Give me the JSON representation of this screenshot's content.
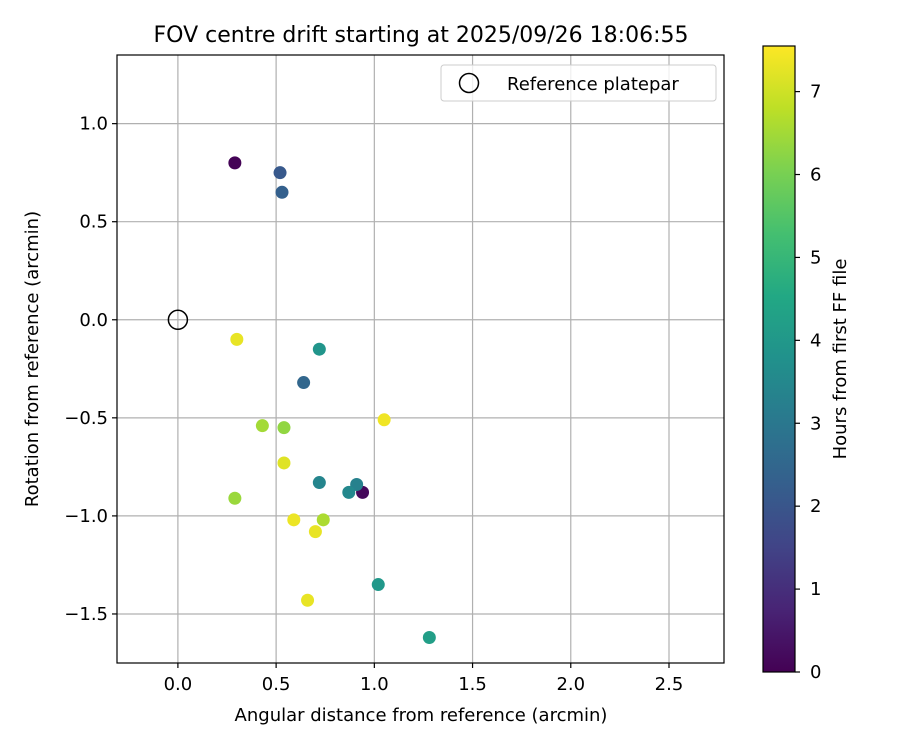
{
  "chart_data": {
    "type": "scatter",
    "title": "FOV centre drift starting at 2025/09/26 18:06:55",
    "xlabel": "Angular distance from reference (arcmin)",
    "ylabel": "Rotation from reference (arcmin)",
    "xlim": [
      -0.31,
      2.78
    ],
    "ylim": [
      -1.75,
      1.35
    ],
    "xticks": [
      0.0,
      0.5,
      1.0,
      1.5,
      2.0,
      2.5
    ],
    "xtick_labels": [
      "0.0",
      "0.5",
      "1.0",
      "1.5",
      "2.0",
      "2.5"
    ],
    "yticks": [
      1.0,
      0.5,
      0.0,
      -0.5,
      -1.0,
      -1.5
    ],
    "ytick_labels": [
      "1.0",
      "0.5",
      "0.0",
      "−0.5",
      "−1.0",
      "−1.5"
    ],
    "grid": true,
    "legend": {
      "position": "top-right",
      "entries": [
        "Reference platepar"
      ]
    },
    "reference_point": {
      "x": 0.0,
      "y": 0.0,
      "label": "Reference platepar"
    },
    "colorbar": {
      "label": "Hours from first FF file",
      "range": [
        0,
        7.55
      ],
      "ticks": [
        0,
        1,
        2,
        3,
        4,
        5,
        6,
        7
      ],
      "tick_labels": [
        "0",
        "1",
        "2",
        "3",
        "4",
        "5",
        "6",
        "7"
      ],
      "colormap": "viridis"
    },
    "points": [
      {
        "x": 0.29,
        "y": 0.8,
        "c": 0.05
      },
      {
        "x": 0.94,
        "y": -0.88,
        "c": 0.15
      },
      {
        "x": 0.52,
        "y": 0.75,
        "c": 2.1
      },
      {
        "x": 0.53,
        "y": 0.65,
        "c": 2.3
      },
      {
        "x": 0.64,
        "y": -0.32,
        "c": 2.5
      },
      {
        "x": 0.72,
        "y": -0.83,
        "c": 3.4
      },
      {
        "x": 0.91,
        "y": -0.84,
        "c": 3.3
      },
      {
        "x": 0.87,
        "y": -0.88,
        "c": 3.5
      },
      {
        "x": 0.72,
        "y": -0.15,
        "c": 3.9
      },
      {
        "x": 1.02,
        "y": -1.35,
        "c": 4.0
      },
      {
        "x": 1.28,
        "y": -1.62,
        "c": 4.2
      },
      {
        "x": 0.43,
        "y": -0.54,
        "c": 6.5
      },
      {
        "x": 0.54,
        "y": -0.55,
        "c": 6.3
      },
      {
        "x": 0.29,
        "y": -0.91,
        "c": 6.4
      },
      {
        "x": 0.74,
        "y": -1.02,
        "c": 6.6
      },
      {
        "x": 0.3,
        "y": -0.1,
        "c": 7.3
      },
      {
        "x": 1.05,
        "y": -0.51,
        "c": 7.4
      },
      {
        "x": 0.54,
        "y": -0.73,
        "c": 7.2
      },
      {
        "x": 0.59,
        "y": -1.02,
        "c": 7.35
      },
      {
        "x": 0.7,
        "y": -1.08,
        "c": 7.3
      },
      {
        "x": 0.66,
        "y": -1.43,
        "c": 7.3
      }
    ]
  }
}
